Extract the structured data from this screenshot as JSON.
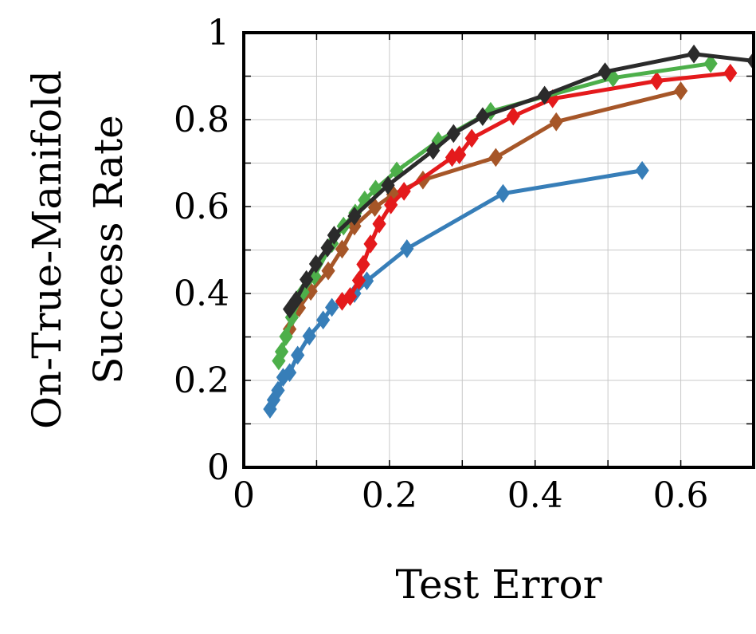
{
  "chart_data": {
    "type": "line",
    "title": "",
    "xlabel": "Test Error",
    "ylabel_lines": [
      "On-True-Manifold",
      "Success Rate"
    ],
    "xlim": [
      0,
      0.7
    ],
    "ylim": [
      0,
      1
    ],
    "x_ticks": [
      0,
      0.2,
      0.4,
      0.6
    ],
    "x_tick_labels": [
      "0",
      "0.2",
      "0.4",
      "0.6"
    ],
    "y_ticks": [
      0,
      0.2,
      0.4,
      0.6,
      0.8,
      1
    ],
    "y_tick_labels": [
      "0",
      "0.2",
      "0.4",
      "0.6",
      "0.8",
      "1"
    ],
    "x_minor_step": 0.1,
    "y_minor_step": 0.1,
    "grid": true,
    "legend": false,
    "marker": "diamond",
    "series": [
      {
        "color": "#377eb8",
        "x": [
          0.036,
          0.041,
          0.047,
          0.054,
          0.063,
          0.074,
          0.09,
          0.109,
          0.121,
          0.152,
          0.169,
          0.224,
          0.356,
          0.547
        ],
        "y": [
          0.134,
          0.155,
          0.177,
          0.207,
          0.218,
          0.258,
          0.302,
          0.339,
          0.368,
          0.4,
          0.429,
          0.503,
          0.63,
          0.683
        ]
      },
      {
        "color": "#a65628",
        "x": [
          0.063,
          0.076,
          0.092,
          0.116,
          0.135,
          0.152,
          0.18,
          0.205,
          0.246,
          0.346,
          0.429,
          0.6
        ],
        "y": [
          0.318,
          0.367,
          0.405,
          0.452,
          0.502,
          0.555,
          0.598,
          0.628,
          0.661,
          0.713,
          0.795,
          0.866
        ]
      },
      {
        "color": "#e41a1c",
        "x": [
          0.135,
          0.146,
          0.158,
          0.164,
          0.174,
          0.186,
          0.202,
          0.22,
          0.286,
          0.296,
          0.313,
          0.37,
          0.424,
          0.567,
          0.668
        ],
        "y": [
          0.382,
          0.393,
          0.43,
          0.467,
          0.514,
          0.56,
          0.604,
          0.635,
          0.713,
          0.719,
          0.757,
          0.808,
          0.848,
          0.889,
          0.907
        ]
      },
      {
        "color": "#4daf4a",
        "x": [
          0.048,
          0.052,
          0.058,
          0.066,
          0.081,
          0.097,
          0.121,
          0.137,
          0.153,
          0.166,
          0.181,
          0.21,
          0.267,
          0.339,
          0.507,
          0.641
        ],
        "y": [
          0.245,
          0.266,
          0.301,
          0.345,
          0.403,
          0.44,
          0.515,
          0.555,
          0.585,
          0.615,
          0.64,
          0.682,
          0.751,
          0.819,
          0.896,
          0.929
        ]
      },
      {
        "color": "#2b2b2b",
        "x": [
          0.063,
          0.072,
          0.086,
          0.099,
          0.115,
          0.124,
          0.152,
          0.198,
          0.26,
          0.288,
          0.328,
          0.413,
          0.496,
          0.618,
          0.7
        ],
        "y": [
          0.364,
          0.385,
          0.432,
          0.468,
          0.505,
          0.534,
          0.578,
          0.649,
          0.729,
          0.768,
          0.807,
          0.856,
          0.91,
          0.951,
          0.935
        ]
      }
    ]
  }
}
